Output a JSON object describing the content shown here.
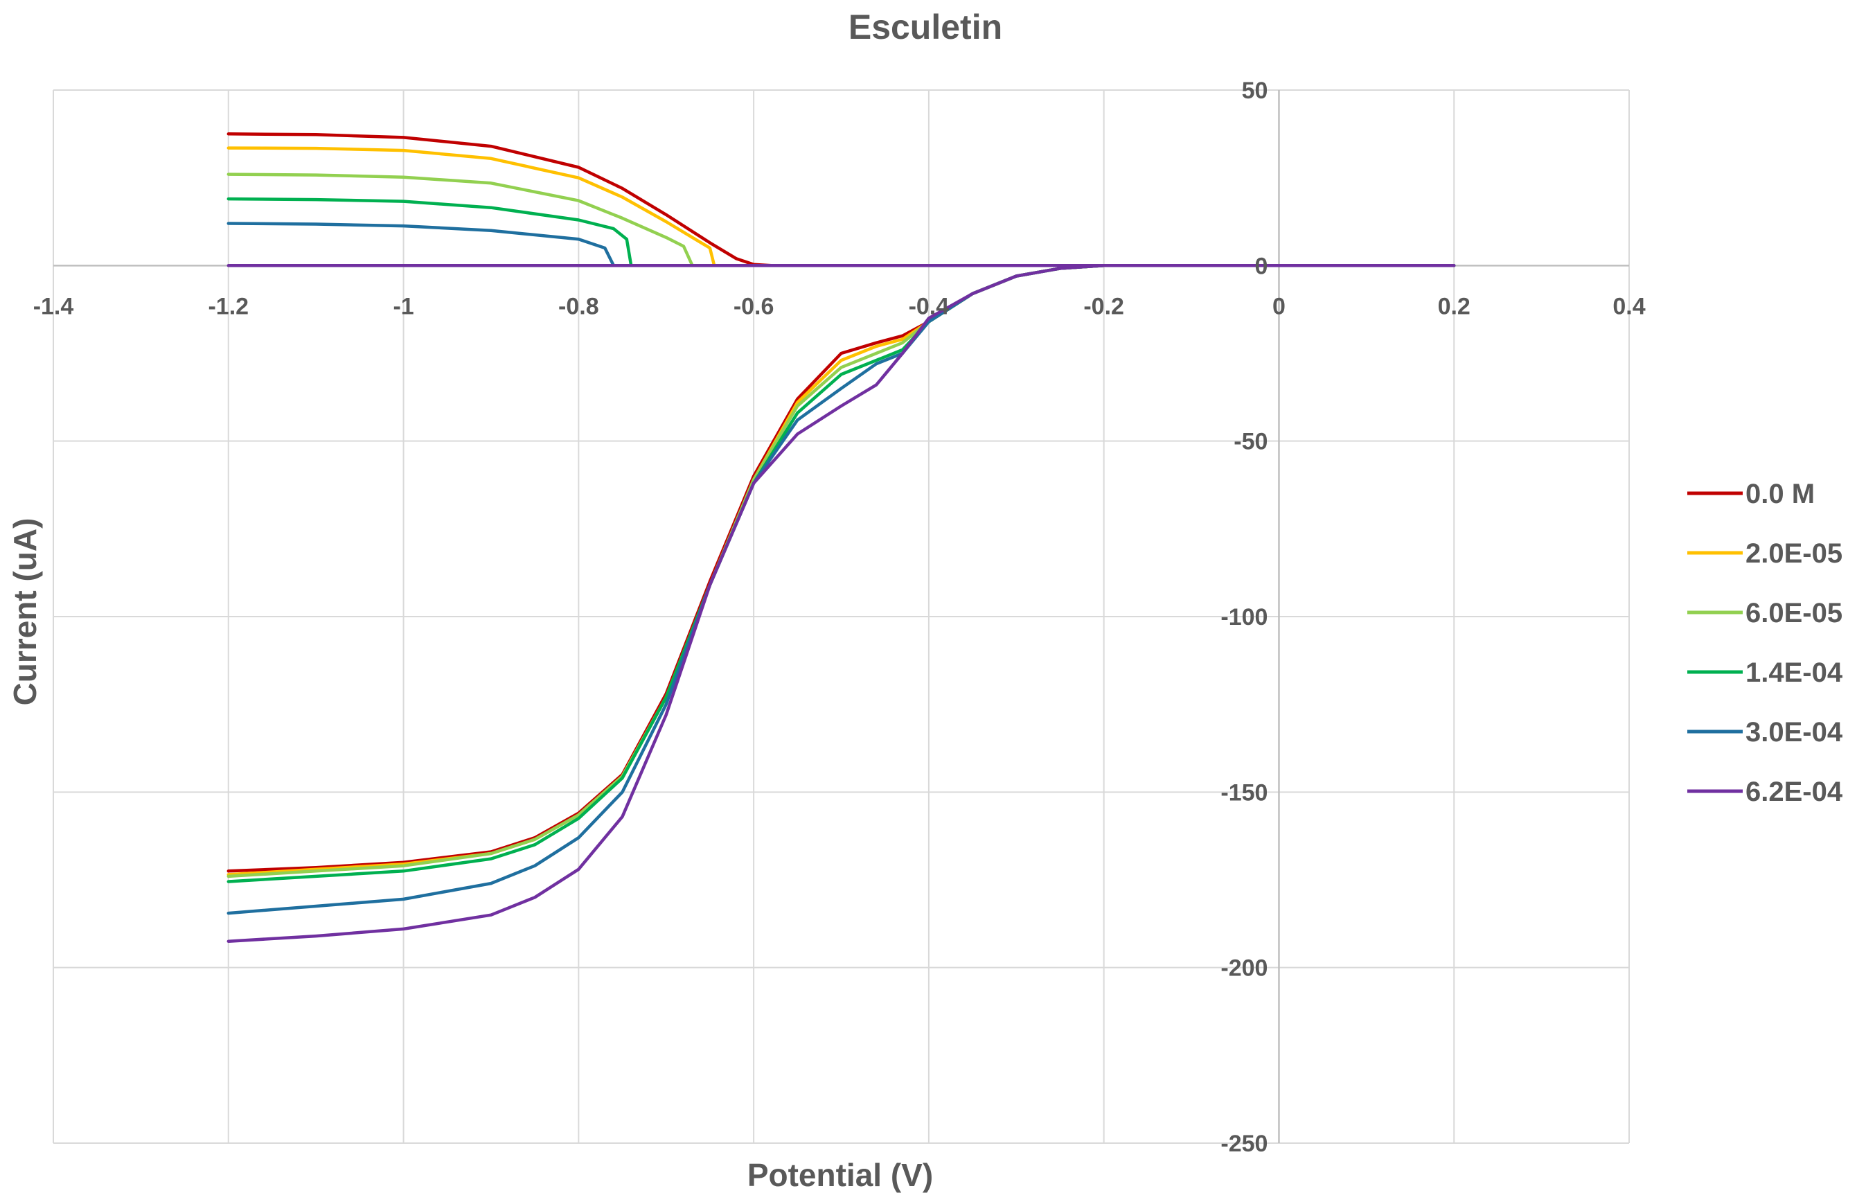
{
  "chart_data": {
    "type": "line",
    "title": "Esculetin",
    "xlabel": "Potential (V)",
    "ylabel": "Current (uA)",
    "xlim": [
      -1.4,
      0.4
    ],
    "ylim": [
      -250,
      50
    ],
    "x_ticks": [
      "-1.4",
      "-1.2",
      "-1",
      "-0.8",
      "-0.6",
      "-0.4",
      "-0.2",
      "0",
      "0.2",
      "0.4"
    ],
    "y_ticks": [
      "50",
      "0",
      "-50",
      "-100",
      "-150",
      "-200",
      "-250"
    ],
    "grid": true,
    "legend_position": "right",
    "series": [
      {
        "name": "0.0 M",
        "color": "#c00000",
        "values": [
          [
            -1.2,
            37.5
          ],
          [
            -1.1,
            37.3
          ],
          [
            -1.0,
            36.5
          ],
          [
            -0.9,
            34.0
          ],
          [
            -0.8,
            28.0
          ],
          [
            -0.75,
            22.0
          ],
          [
            -0.7,
            14.5
          ],
          [
            -0.65,
            6.5
          ],
          [
            -0.62,
            2.0
          ],
          [
            -0.6,
            0.3
          ],
          [
            -0.58,
            0
          ],
          [
            0.2,
            0
          ],
          [
            0.2,
            0
          ],
          [
            -0.1,
            0
          ],
          [
            -0.2,
            0
          ],
          [
            -0.25,
            -0.8
          ],
          [
            -0.3,
            -3.0
          ],
          [
            -0.35,
            -8.0
          ],
          [
            -0.4,
            -16.0
          ],
          [
            -0.43,
            -20.0
          ],
          [
            -0.46,
            -22.0
          ],
          [
            -0.5,
            -25.0
          ],
          [
            -0.55,
            -38.0
          ],
          [
            -0.6,
            -60.0
          ],
          [
            -0.65,
            -90.0
          ],
          [
            -0.7,
            -122.0
          ],
          [
            -0.75,
            -145.0
          ],
          [
            -0.8,
            -156.0
          ],
          [
            -0.85,
            -163.0
          ],
          [
            -0.9,
            -167.0
          ],
          [
            -1.0,
            -170.0
          ],
          [
            -1.1,
            -171.5
          ],
          [
            -1.2,
            -172.5
          ]
        ]
      },
      {
        "name": "2.0E-05",
        "color": "#ffc000",
        "values": [
          [
            -1.2,
            33.5
          ],
          [
            -1.1,
            33.4
          ],
          [
            -1.0,
            32.8
          ],
          [
            -0.9,
            30.5
          ],
          [
            -0.8,
            25.0
          ],
          [
            -0.75,
            19.5
          ],
          [
            -0.7,
            12.5
          ],
          [
            -0.67,
            8.0
          ],
          [
            -0.65,
            5.0
          ],
          [
            -0.645,
            0
          ],
          [
            0.2,
            0
          ],
          [
            0.2,
            0
          ],
          [
            -0.1,
            0
          ],
          [
            -0.2,
            0
          ],
          [
            -0.25,
            -0.8
          ],
          [
            -0.3,
            -3.0
          ],
          [
            -0.35,
            -8.0
          ],
          [
            -0.4,
            -16.0
          ],
          [
            -0.43,
            -21.0
          ],
          [
            -0.46,
            -23.0
          ],
          [
            -0.5,
            -27.0
          ],
          [
            -0.55,
            -39.0
          ],
          [
            -0.6,
            -61.0
          ],
          [
            -0.65,
            -91.0
          ],
          [
            -0.7,
            -123.0
          ],
          [
            -0.75,
            -145.5
          ],
          [
            -0.8,
            -156.5
          ],
          [
            -0.85,
            -163.5
          ],
          [
            -0.9,
            -167.5
          ],
          [
            -1.0,
            -170.5
          ],
          [
            -1.1,
            -172.0
          ],
          [
            -1.2,
            -173.5
          ]
        ]
      },
      {
        "name": "6.0E-05",
        "color": "#92d050",
        "values": [
          [
            -1.2,
            26.0
          ],
          [
            -1.1,
            25.8
          ],
          [
            -1.0,
            25.2
          ],
          [
            -0.9,
            23.5
          ],
          [
            -0.8,
            18.5
          ],
          [
            -0.75,
            13.5
          ],
          [
            -0.7,
            8.0
          ],
          [
            -0.68,
            5.5
          ],
          [
            -0.67,
            0
          ],
          [
            0.2,
            0
          ],
          [
            0.2,
            0
          ],
          [
            -0.1,
            0
          ],
          [
            -0.2,
            0
          ],
          [
            -0.25,
            -0.8
          ],
          [
            -0.3,
            -3.0
          ],
          [
            -0.35,
            -8.0
          ],
          [
            -0.4,
            -16.0
          ],
          [
            -0.43,
            -22.0
          ],
          [
            -0.46,
            -25.0
          ],
          [
            -0.5,
            -29.0
          ],
          [
            -0.55,
            -40.0
          ],
          [
            -0.6,
            -61.0
          ],
          [
            -0.65,
            -91.0
          ],
          [
            -0.7,
            -123.0
          ],
          [
            -0.75,
            -145.5
          ],
          [
            -0.8,
            -156.5
          ],
          [
            -0.85,
            -163.5
          ],
          [
            -0.9,
            -167.5
          ],
          [
            -1.0,
            -171.0
          ],
          [
            -1.1,
            -172.5
          ],
          [
            -1.2,
            -174.0
          ]
        ]
      },
      {
        "name": "1.4E-04",
        "color": "#00b050",
        "values": [
          [
            -1.2,
            19.0
          ],
          [
            -1.1,
            18.8
          ],
          [
            -1.0,
            18.3
          ],
          [
            -0.9,
            16.5
          ],
          [
            -0.8,
            13.0
          ],
          [
            -0.76,
            10.5
          ],
          [
            -0.745,
            7.5
          ],
          [
            -0.74,
            0
          ],
          [
            0.2,
            0
          ],
          [
            0.2,
            0
          ],
          [
            -0.1,
            0
          ],
          [
            -0.2,
            0
          ],
          [
            -0.25,
            -0.8
          ],
          [
            -0.3,
            -3.0
          ],
          [
            -0.35,
            -8.0
          ],
          [
            -0.4,
            -16.0
          ],
          [
            -0.43,
            -24.0
          ],
          [
            -0.46,
            -27.0
          ],
          [
            -0.5,
            -31.0
          ],
          [
            -0.55,
            -42.0
          ],
          [
            -0.6,
            -62.0
          ],
          [
            -0.65,
            -91.0
          ],
          [
            -0.7,
            -123.0
          ],
          [
            -0.75,
            -146.0
          ],
          [
            -0.8,
            -157.5
          ],
          [
            -0.85,
            -165.0
          ],
          [
            -0.9,
            -169.0
          ],
          [
            -1.0,
            -172.5
          ],
          [
            -1.1,
            -174.0
          ],
          [
            -1.2,
            -175.5
          ]
        ]
      },
      {
        "name": "3.0E-04",
        "color": "#1f6f9f",
        "values": [
          [
            -1.2,
            12.0
          ],
          [
            -1.1,
            11.8
          ],
          [
            -1.0,
            11.3
          ],
          [
            -0.9,
            10.0
          ],
          [
            -0.8,
            7.5
          ],
          [
            -0.77,
            5.0
          ],
          [
            -0.76,
            0
          ],
          [
            0.2,
            0
          ],
          [
            0.2,
            0
          ],
          [
            -0.1,
            0
          ],
          [
            -0.2,
            0
          ],
          [
            -0.25,
            -0.8
          ],
          [
            -0.3,
            -3.0
          ],
          [
            -0.35,
            -8.0
          ],
          [
            -0.4,
            -16.0
          ],
          [
            -0.43,
            -25.0
          ],
          [
            -0.46,
            -28.0
          ],
          [
            -0.5,
            -35.0
          ],
          [
            -0.55,
            -44.0
          ],
          [
            -0.6,
            -62.0
          ],
          [
            -0.65,
            -91.0
          ],
          [
            -0.7,
            -125.0
          ],
          [
            -0.75,
            -150.0
          ],
          [
            -0.8,
            -163.0
          ],
          [
            -0.85,
            -171.0
          ],
          [
            -0.9,
            -176.0
          ],
          [
            -1.0,
            -180.5
          ],
          [
            -1.1,
            -182.5
          ],
          [
            -1.2,
            -184.5
          ]
        ]
      },
      {
        "name": "6.2E-04",
        "color": "#7030a0",
        "values": [
          [
            -1.2,
            0
          ],
          [
            0.2,
            0
          ],
          [
            0.2,
            0
          ],
          [
            -0.1,
            0
          ],
          [
            -0.2,
            0
          ],
          [
            -0.25,
            -0.8
          ],
          [
            -0.3,
            -3.0
          ],
          [
            -0.35,
            -8.0
          ],
          [
            -0.4,
            -15.0
          ],
          [
            -0.43,
            -25.0
          ],
          [
            -0.46,
            -34.0
          ],
          [
            -0.5,
            -40.0
          ],
          [
            -0.55,
            -48.0
          ],
          [
            -0.6,
            -62.0
          ],
          [
            -0.65,
            -91.0
          ],
          [
            -0.7,
            -128.0
          ],
          [
            -0.75,
            -157.0
          ],
          [
            -0.8,
            -172.0
          ],
          [
            -0.85,
            -180.0
          ],
          [
            -0.9,
            -185.0
          ],
          [
            -1.0,
            -189.0
          ],
          [
            -1.1,
            -191.0
          ],
          [
            -1.2,
            -192.5
          ]
        ]
      }
    ]
  }
}
